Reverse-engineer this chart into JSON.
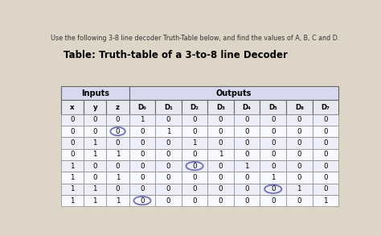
{
  "title_small": "Use the following 3-8 line decoder Truth-Table below, and find the values of A, B, C and D.",
  "title_main": "Table: Truth-table of a 3-to-8 line Decoder",
  "col_headers": [
    "x",
    "y",
    "z",
    "D₀",
    "D₁",
    "D₂",
    "D₃",
    "D₄",
    "D₅",
    "D₆",
    "D₇"
  ],
  "group_headers": [
    "Inputs",
    "Outputs"
  ],
  "table_data": [
    [
      "0",
      "0",
      "0",
      "1",
      "0",
      "0",
      "0",
      "0",
      "0",
      "0",
      "0"
    ],
    [
      "0",
      "0",
      "0",
      "0",
      "1",
      "0",
      "0",
      "0",
      "0",
      "0",
      "0"
    ],
    [
      "0",
      "1",
      "0",
      "0",
      "0",
      "1",
      "0",
      "0",
      "0",
      "0",
      "0"
    ],
    [
      "0",
      "1",
      "1",
      "0",
      "0",
      "0",
      "1",
      "0",
      "0",
      "0",
      "0"
    ],
    [
      "1",
      "0",
      "0",
      "0",
      "0",
      "0",
      "0",
      "1",
      "0",
      "0",
      "0"
    ],
    [
      "1",
      "0",
      "1",
      "0",
      "0",
      "0",
      "0",
      "0",
      "1",
      "0",
      "0"
    ],
    [
      "1",
      "1",
      "0",
      "0",
      "0",
      "0",
      "0",
      "0",
      "0",
      "1",
      "0"
    ],
    [
      "1",
      "1",
      "1",
      "0",
      "0",
      "0",
      "0",
      "0",
      "0",
      "0",
      "1"
    ]
  ],
  "circled_cells": [
    {
      "row": 1,
      "col": 2,
      "color": "#7070bb"
    },
    {
      "row": 4,
      "col": 5,
      "color": "#7070bb"
    },
    {
      "row": 6,
      "col": 8,
      "color": "#7070bb"
    },
    {
      "row": 7,
      "col": 3,
      "color": "#7070bb"
    }
  ],
  "bg_color": "#ddd5c8",
  "header_bg": "#d8d8ee",
  "col_header_bg": "#e8e8f0",
  "row_bg_even": "#eeeef8",
  "row_bg_odd": "#f8f8ff"
}
